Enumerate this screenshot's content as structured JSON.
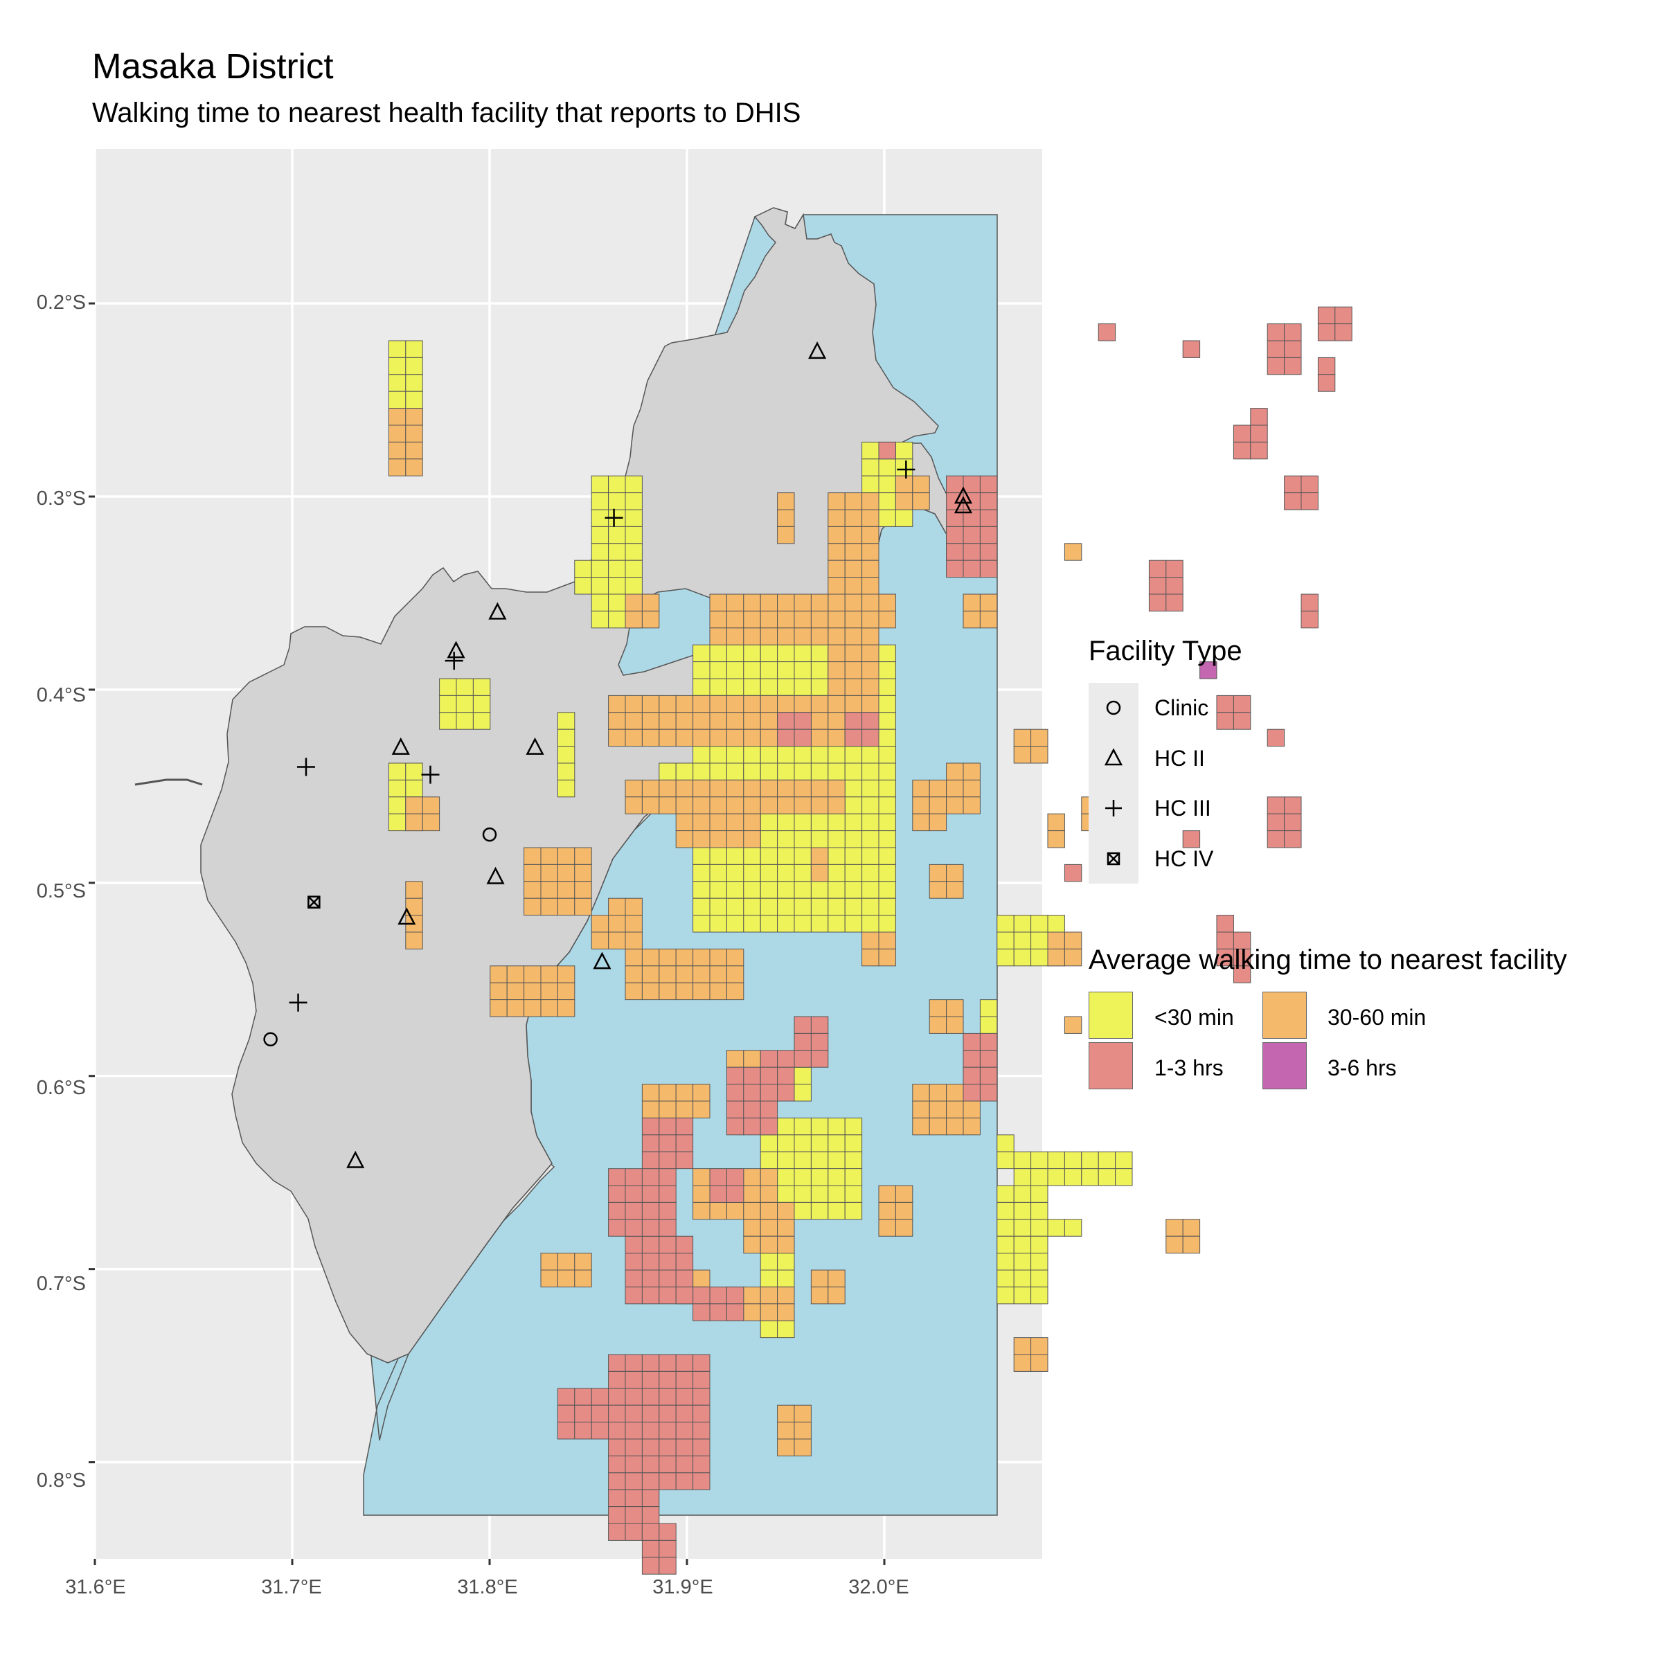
{
  "title": "Masaka District",
  "subtitle": "Walking time to nearest health facility that reports to DHIS",
  "axes": {
    "y_ticks": [
      {
        "value": -0.2,
        "label": "0.2°S"
      },
      {
        "value": -0.3,
        "label": "0.3°S"
      },
      {
        "value": -0.4,
        "label": "0.4°S"
      },
      {
        "value": -0.5,
        "label": "0.5°S"
      },
      {
        "value": -0.6,
        "label": "0.6°S"
      },
      {
        "value": -0.7,
        "label": "0.7°S"
      },
      {
        "value": -0.8,
        "label": "0.8°S"
      }
    ],
    "x_ticks": [
      {
        "value": 31.6,
        "label": "31.6°E"
      },
      {
        "value": 31.7,
        "label": "31.7°E"
      },
      {
        "value": 31.8,
        "label": "31.8°E"
      },
      {
        "value": 31.9,
        "label": "31.9°E"
      },
      {
        "value": 32.0,
        "label": "32.0°E"
      }
    ]
  },
  "legend_facility": {
    "title": "Facility Type",
    "items": [
      {
        "label": "Clinic",
        "shape": "circle-icon"
      },
      {
        "label": "HC II",
        "shape": "triangle-icon"
      },
      {
        "label": "HC III",
        "shape": "plus-icon"
      },
      {
        "label": "HC IV",
        "shape": "boxed-x-icon"
      }
    ]
  },
  "legend_time": {
    "title": "Average walking time to nearest facility",
    "items": [
      {
        "label": "<30 min",
        "color": "#eef35a"
      },
      {
        "label": "30-60 min",
        "color": "#f5b96b"
      },
      {
        "label": "1-3 hrs",
        "color": "#e58c87"
      },
      {
        "label": "3-6 hrs",
        "color": "#c466b0"
      }
    ]
  },
  "colors": {
    "panel": "#ebebeb",
    "grid": "#ffffff",
    "land": "#d3d3d3",
    "water": "#add8e6",
    "outline": "#555555"
  },
  "chart_data": {
    "type": "map",
    "xlim": [
      31.6,
      32.08
    ],
    "ylim": [
      -0.85,
      -0.12
    ],
    "facilities": [
      {
        "type": "Clinic",
        "lon": 31.8,
        "lat": -0.475
      },
      {
        "type": "Clinic",
        "lon": 31.689,
        "lat": -0.581
      },
      {
        "type": "HC II",
        "lon": 31.966,
        "lat": -0.225
      },
      {
        "type": "HC II",
        "lon": 32.04,
        "lat": -0.3
      },
      {
        "type": "HC II",
        "lon": 32.04,
        "lat": -0.305
      },
      {
        "type": "HC II",
        "lon": 31.804,
        "lat": -0.36
      },
      {
        "type": "HC II",
        "lon": 31.783,
        "lat": -0.38
      },
      {
        "type": "HC II",
        "lon": 31.755,
        "lat": -0.43
      },
      {
        "type": "HC II",
        "lon": 31.823,
        "lat": -0.43
      },
      {
        "type": "HC II",
        "lon": 31.803,
        "lat": -0.497
      },
      {
        "type": "HC II",
        "lon": 31.758,
        "lat": -0.518
      },
      {
        "type": "HC II",
        "lon": 31.857,
        "lat": -0.541
      },
      {
        "type": "HC II",
        "lon": 31.732,
        "lat": -0.644
      },
      {
        "type": "HC III",
        "lon": 32.011,
        "lat": -0.286
      },
      {
        "type": "HC III",
        "lon": 31.863,
        "lat": -0.311
      },
      {
        "type": "HC III",
        "lon": 31.782,
        "lat": -0.385
      },
      {
        "type": "HC III",
        "lon": 31.707,
        "lat": -0.44
      },
      {
        "type": "HC III",
        "lon": 31.77,
        "lat": -0.444
      },
      {
        "type": "HC III",
        "lon": 31.703,
        "lat": -0.562
      },
      {
        "type": "HC IV",
        "lon": 31.711,
        "lat": -0.51
      }
    ],
    "clusters": [
      {
        "category": "<30 min",
        "cells": [
          [
            29,
            23,
            12,
            17
          ],
          [
            22,
            18,
            3,
            2
          ],
          [
            23,
            13,
            3,
            9
          ],
          [
            14,
            25,
            3,
            3
          ],
          [
            21,
            27,
            1,
            5
          ],
          [
            27,
            30,
            2,
            2
          ],
          [
            33,
            32,
            5,
            3
          ],
          [
            32,
            30,
            2,
            2
          ],
          [
            47,
            39,
            4,
            3
          ],
          [
            46,
            44,
            1,
            2
          ],
          [
            47,
            52,
            1,
            2
          ],
          [
            47,
            55,
            3,
            7
          ],
          [
            48,
            53,
            7,
            2
          ],
          [
            50,
            57,
            2,
            1
          ],
          [
            33,
            52,
            2,
            12
          ],
          [
            34,
            51,
            5,
            6
          ],
          [
            35,
            46,
            1,
            4
          ],
          [
            39,
            11,
            3,
            5
          ],
          [
            11,
            5,
            2,
            5
          ],
          [
            11,
            30,
            2,
            4
          ]
        ]
      },
      {
        "category": "30-60 min",
        "cells": [
          [
            24,
            26,
            16,
            3
          ],
          [
            25,
            31,
            13,
            2
          ],
          [
            37,
            14,
            3,
            14
          ],
          [
            30,
            20,
            7,
            3
          ],
          [
            28,
            33,
            5,
            2
          ],
          [
            25,
            41,
            7,
            3
          ],
          [
            26,
            49,
            4,
            2
          ],
          [
            29,
            54,
            5,
            3
          ],
          [
            32,
            57,
            3,
            2
          ],
          [
            24,
            38,
            2,
            3
          ],
          [
            19,
            35,
            4,
            4
          ],
          [
            42,
            31,
            2,
            3
          ],
          [
            17,
            42,
            5,
            3
          ],
          [
            40,
            55,
            2,
            3
          ],
          [
            42,
            49,
            4,
            3
          ],
          [
            34,
            14,
            1,
            3
          ],
          [
            39,
            20,
            2,
            2
          ],
          [
            44,
            30,
            2,
            3
          ],
          [
            34,
            26,
            1,
            2
          ],
          [
            36,
            35,
            1,
            2
          ],
          [
            39,
            40,
            2,
            2
          ],
          [
            43,
            36,
            2,
            2
          ],
          [
            44,
            16,
            2,
            2
          ],
          [
            45,
            20,
            2,
            2
          ],
          [
            48,
            28,
            2,
            2
          ],
          [
            50,
            40,
            2,
            2
          ],
          [
            52,
            32,
            3,
            2
          ],
          [
            48,
            64,
            2,
            2
          ],
          [
            31,
            61,
            4,
            2
          ],
          [
            33,
            58,
            1,
            1
          ],
          [
            36,
            60,
            2,
            2
          ],
          [
            34,
            68,
            2,
            3
          ],
          [
            21,
            68,
            1,
            2
          ],
          [
            20,
            59,
            3,
            2
          ],
          [
            28,
            60,
            2,
            2
          ],
          [
            31,
            47,
            2,
            1
          ],
          [
            33,
            56,
            2,
            1
          ],
          [
            43,
            44,
            2,
            2
          ],
          [
            25,
            20,
            2,
            2
          ],
          [
            41,
            13,
            2,
            2
          ],
          [
            50,
            33,
            1,
            2
          ],
          [
            11,
            9,
            2,
            4
          ],
          [
            12,
            32,
            2,
            2
          ],
          [
            12,
            37,
            1,
            4
          ],
          [
            51,
            17,
            1,
            1
          ],
          [
            51,
            45,
            1,
            1
          ],
          [
            57,
            57,
            2,
            2
          ],
          [
            23,
            39,
            1,
            2
          ]
        ]
      },
      {
        "category": "1-3 hrs",
        "cells": [
          [
            24,
            65,
            6,
            8
          ],
          [
            21,
            67,
            3,
            3
          ],
          [
            24,
            73,
            3,
            3
          ],
          [
            29,
            61,
            3,
            2
          ],
          [
            26,
            75,
            2,
            3
          ],
          [
            25,
            58,
            4,
            4
          ],
          [
            24,
            54,
            4,
            4
          ],
          [
            26,
            51,
            3,
            3
          ],
          [
            30,
            54,
            2,
            2
          ],
          [
            31,
            48,
            3,
            4
          ],
          [
            33,
            47,
            2,
            3
          ],
          [
            34,
            27,
            2,
            2
          ],
          [
            35,
            45,
            2,
            3
          ],
          [
            44,
            13,
            3,
            6
          ],
          [
            45,
            46,
            2,
            4
          ],
          [
            53,
            4,
            1,
            1
          ],
          [
            51,
            36,
            1,
            1
          ],
          [
            58,
            5,
            1,
            1
          ],
          [
            63,
            4,
            2,
            3
          ],
          [
            66,
            3,
            2,
            2
          ],
          [
            56,
            18,
            2,
            3
          ],
          [
            58,
            34,
            1,
            1
          ],
          [
            60,
            39,
            1,
            3
          ],
          [
            61,
            40,
            1,
            3
          ],
          [
            60,
            26,
            2,
            2
          ],
          [
            63,
            32,
            2,
            3
          ],
          [
            40,
            11,
            1,
            1
          ],
          [
            38,
            27,
            2,
            2
          ],
          [
            61,
            10,
            2,
            2
          ],
          [
            62,
            9,
            1,
            1
          ],
          [
            63,
            28,
            1,
            1
          ],
          [
            65,
            20,
            1,
            2
          ],
          [
            64,
            13,
            2,
            2
          ],
          [
            66,
            6,
            1,
            2
          ]
        ]
      },
      {
        "category": "3-6 hrs",
        "cells": [
          [
            59,
            24,
            1,
            1
          ]
        ]
      }
    ]
  }
}
